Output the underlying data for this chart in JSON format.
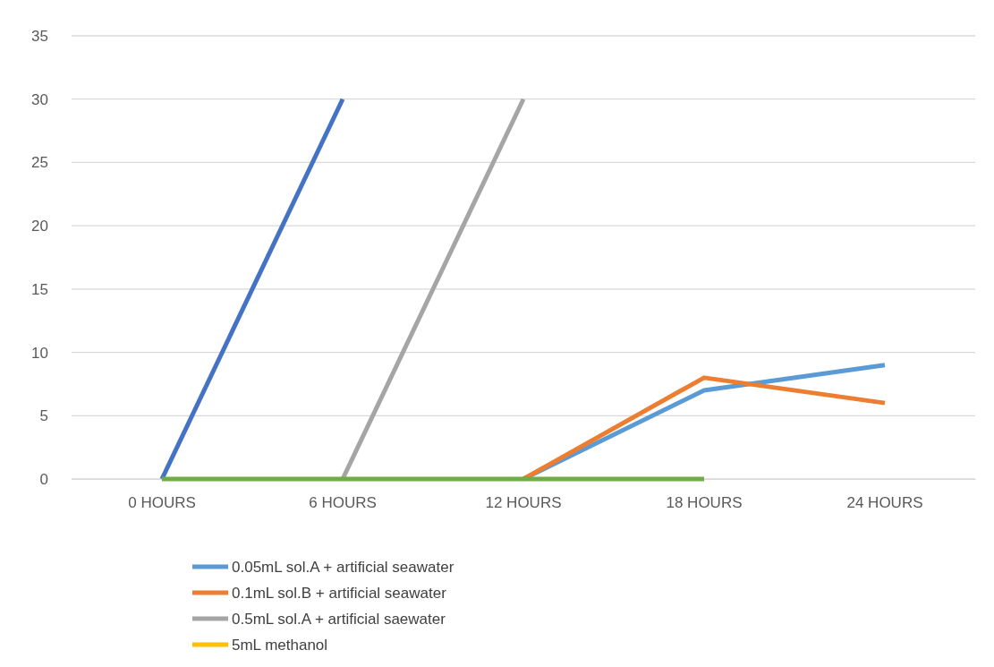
{
  "chart_data": {
    "type": "line",
    "categories": [
      "0 HOURS",
      "6 HOURS",
      "12 HOURS",
      "18 HOURS",
      "24 HOURS"
    ],
    "ylim": [
      0,
      35
    ],
    "yticks": [
      0,
      5,
      10,
      15,
      20,
      25,
      30,
      35
    ],
    "grid": "y",
    "legend": "bottom",
    "marker": "none",
    "line_style": "solid",
    "series": [
      {
        "name": "0.05mL sol.A + artificial seawater",
        "color": "#5b9bd5",
        "values": [
          null,
          null,
          0,
          7,
          9
        ]
      },
      {
        "name": "0.1mL sol.B + artificial seawater",
        "color": "#ed7d31",
        "values": [
          null,
          null,
          0,
          8,
          6
        ]
      },
      {
        "name": "0.5mL sol.A + artificial saewater",
        "color": "#a5a5a5",
        "values": [
          null,
          0,
          30,
          null,
          null
        ]
      },
      {
        "name": "5mL methanol",
        "color": "#ffc000",
        "values": [
          null,
          null,
          null,
          null,
          null
        ]
      },
      {
        "color": "#4472c4",
        "values": [
          0,
          30,
          null,
          null,
          null
        ]
      },
      {
        "color": "#70ad47",
        "values": [
          0,
          0,
          0,
          0,
          null
        ]
      }
    ]
  }
}
